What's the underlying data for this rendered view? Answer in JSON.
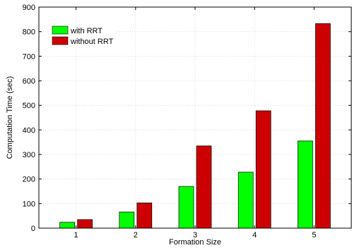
{
  "chart_data": {
    "type": "bar",
    "categories": [
      "1",
      "2",
      "3",
      "4",
      "5"
    ],
    "series": [
      {
        "name": "with RRT",
        "values": [
          24,
          66,
          170,
          228,
          355
        ]
      },
      {
        "name": "without RRT",
        "values": [
          35,
          103,
          335,
          478,
          833
        ]
      }
    ],
    "title": "",
    "xlabel": "Formation Size",
    "ylabel": "Computation Time (sec)",
    "ylim": [
      0,
      900
    ],
    "yticks": [
      "0",
      "100",
      "200",
      "300",
      "400",
      "500",
      "600",
      "700",
      "800",
      "900"
    ],
    "grid": true,
    "legend_position": "top-left"
  },
  "colors": {
    "with_rrt": "#00ff00",
    "without_rrt": "#cc0000",
    "grid": "#d9d9d9",
    "axes": "#000000"
  }
}
